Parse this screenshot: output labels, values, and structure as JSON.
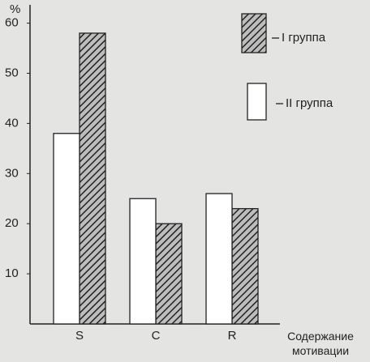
{
  "chart_data": {
    "type": "bar",
    "ylabel": "%",
    "xlabel": "Содержание мотивации",
    "categories": [
      "S",
      "C",
      "R"
    ],
    "series": [
      {
        "name": "I группа",
        "color": "#333333",
        "pattern": "hatch",
        "values": [
          58,
          20,
          23
        ]
      },
      {
        "name": "II группа",
        "color": "#ffffff",
        "pattern": "none",
        "values": [
          38,
          25,
          26
        ]
      }
    ],
    "ylim": [
      0,
      63
    ],
    "yticks": [
      10,
      20,
      30,
      40,
      50,
      60
    ],
    "grid": false
  }
}
